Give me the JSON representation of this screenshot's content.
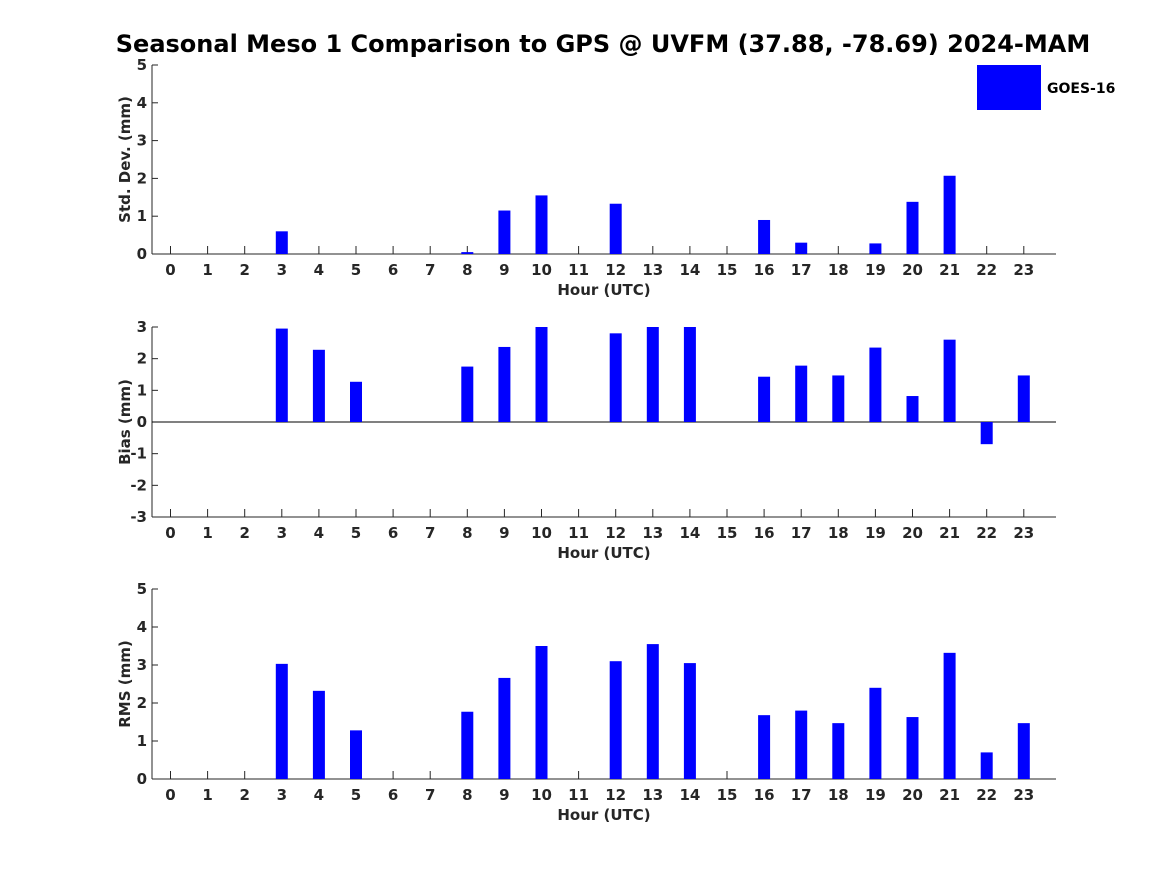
{
  "title": "Seasonal Meso 1 Comparison to GPS @ UVFM (37.88, -78.69) 2024-MAM",
  "legend": {
    "label": "GOES-16",
    "color": "#0000ff"
  },
  "chart_data": [
    {
      "type": "bar",
      "name": "std-dev",
      "categories": [
        "0",
        "1",
        "2",
        "3",
        "4",
        "5",
        "6",
        "7",
        "8",
        "9",
        "10",
        "11",
        "12",
        "13",
        "14",
        "15",
        "16",
        "17",
        "18",
        "19",
        "20",
        "21",
        "22",
        "23"
      ],
      "series": [
        {
          "name": "GOES-16",
          "values": [
            null,
            null,
            null,
            0.6,
            null,
            null,
            null,
            null,
            0.05,
            1.15,
            1.55,
            null,
            1.33,
            null,
            null,
            null,
            0.9,
            0.3,
            null,
            0.28,
            1.38,
            2.07,
            null,
            null
          ]
        }
      ],
      "xlabel": "Hour (UTC)",
      "ylabel": "Std. Dev. (mm)",
      "ylim": [
        0,
        5
      ],
      "yticks": [
        "0",
        "1",
        "2",
        "3",
        "4",
        "5"
      ]
    },
    {
      "type": "bar",
      "name": "bias",
      "categories": [
        "0",
        "1",
        "2",
        "3",
        "4",
        "5",
        "6",
        "7",
        "8",
        "9",
        "10",
        "11",
        "12",
        "13",
        "14",
        "15",
        "16",
        "17",
        "18",
        "19",
        "20",
        "21",
        "22",
        "23"
      ],
      "series": [
        {
          "name": "GOES-16",
          "values": [
            null,
            null,
            null,
            2.95,
            2.28,
            1.27,
            null,
            null,
            1.75,
            2.37,
            3.0,
            null,
            2.8,
            3.0,
            3.0,
            null,
            1.43,
            1.78,
            1.47,
            2.35,
            0.82,
            2.6,
            -0.7,
            1.47
          ]
        }
      ],
      "xlabel": "Hour (UTC)",
      "ylabel": "Bias (mm)",
      "ylim": [
        -3,
        3
      ],
      "yticks": [
        "-3",
        "-2",
        "-1",
        "0",
        "1",
        "2",
        "3"
      ]
    },
    {
      "type": "bar",
      "name": "rms",
      "categories": [
        "0",
        "1",
        "2",
        "3",
        "4",
        "5",
        "6",
        "7",
        "8",
        "9",
        "10",
        "11",
        "12",
        "13",
        "14",
        "15",
        "16",
        "17",
        "18",
        "19",
        "20",
        "21",
        "22",
        "23"
      ],
      "series": [
        {
          "name": "GOES-16",
          "values": [
            null,
            null,
            null,
            3.03,
            2.32,
            1.28,
            null,
            null,
            1.77,
            2.66,
            3.5,
            null,
            3.1,
            3.55,
            3.05,
            null,
            1.68,
            1.8,
            1.47,
            2.4,
            1.63,
            3.32,
            0.7,
            1.47
          ]
        }
      ],
      "xlabel": "Hour (UTC)",
      "ylabel": "RMS (mm)",
      "ylim": [
        0,
        5
      ],
      "yticks": [
        "0",
        "1",
        "2",
        "3",
        "4",
        "5"
      ]
    }
  ]
}
